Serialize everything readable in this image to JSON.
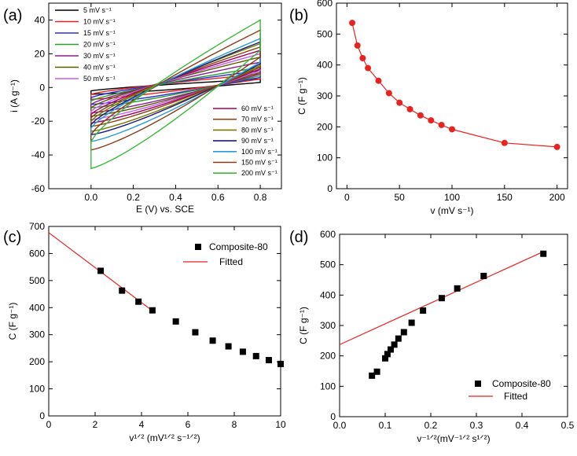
{
  "chart_data": [
    {
      "panel": "(a)",
      "type": "line",
      "xlabel": "E (V) vs. SCE",
      "ylabel": "i (A g⁻¹)",
      "xlim": [
        -0.2,
        0.9
      ],
      "ylim": [
        -60,
        50
      ],
      "xticks": [
        0.0,
        0.2,
        0.4,
        0.6,
        0.8
      ],
      "xtick_labels": [
        "0.0",
        "0.2",
        "0.4",
        "0.6",
        "0.8"
      ],
      "yticks": [
        -60,
        -40,
        -20,
        0,
        20,
        40
      ],
      "ytick_labels": [
        "-60",
        "-40",
        "-20",
        "0",
        "20",
        "40"
      ],
      "legend_placement": "top-left and bottom-right",
      "cv_window": [
        0.0,
        0.8
      ],
      "series": [
        {
          "name": "5 mV s⁻¹",
          "color": "#000000",
          "upper_start": -2,
          "upper_end": 5,
          "lower_start": -4,
          "lower_end": 3
        },
        {
          "name": "10 mV s⁻¹",
          "color": "#e8231f",
          "upper_start": -4,
          "upper_end": 8,
          "lower_start": -7,
          "lower_end": 5
        },
        {
          "name": "15 mV s⁻¹",
          "color": "#2a2ad6",
          "upper_start": -6,
          "upper_end": 10,
          "lower_start": -10,
          "lower_end": 6
        },
        {
          "name": "20 mV s⁻¹",
          "color": "#2e9e2e",
          "upper_start": -8,
          "upper_end": 12,
          "lower_start": -12,
          "lower_end": 7
        },
        {
          "name": "30 mV s⁻¹",
          "color": "#8c1e8c",
          "upper_start": -10,
          "upper_end": 15,
          "lower_start": -15,
          "lower_end": 8
        },
        {
          "name": "40 mV s⁻¹",
          "color": "#5a5a00",
          "upper_start": -12,
          "upper_end": 18,
          "lower_start": -17,
          "lower_end": 9
        },
        {
          "name": "50 mV s⁻¹",
          "color": "#c85ae8",
          "upper_start": -14,
          "upper_end": 20,
          "lower_start": -19,
          "lower_end": 10
        },
        {
          "name": "60 mV s⁻¹",
          "color": "#a0005a",
          "upper_start": -16,
          "upper_end": 22,
          "lower_start": -21,
          "lower_end": 11
        },
        {
          "name": "70 mV s⁻¹",
          "color": "#8b4513",
          "upper_start": -18,
          "upper_end": 24,
          "lower_start": -23,
          "lower_end": 12
        },
        {
          "name": "80 mV s⁻¹",
          "color": "#7a7a00",
          "upper_start": -20,
          "upper_end": 26,
          "lower_start": -26,
          "lower_end": 13
        },
        {
          "name": "90 mV s⁻¹",
          "color": "#1a1a7a",
          "upper_start": -22,
          "upper_end": 27,
          "lower_start": -28,
          "lower_end": 14
        },
        {
          "name": "100 mV s⁻¹",
          "color": "#2a9ad6",
          "upper_start": -24,
          "upper_end": 29,
          "lower_start": -32,
          "lower_end": 15
        },
        {
          "name": "150 mV s⁻¹",
          "color": "#8b3a1a",
          "upper_start": -28,
          "upper_end": 34,
          "lower_start": -37,
          "lower_end": 18
        },
        {
          "name": "200 mV s⁻¹",
          "color": "#3cb83c",
          "upper_start": -32,
          "upper_end": 40,
          "lower_start": -48,
          "lower_end": 22
        }
      ]
    },
    {
      "panel": "(b)",
      "type": "line",
      "xlabel": "v (mV s⁻¹)",
      "ylabel": "C (F g⁻¹)",
      "xlim": [
        -10,
        210
      ],
      "ylim": [
        0,
        600
      ],
      "xticks": [
        0,
        50,
        100,
        150,
        200
      ],
      "xtick_labels": [
        "0",
        "50",
        "100",
        "150",
        "200"
      ],
      "yticks": [
        0,
        100,
        200,
        300,
        400,
        500,
        600
      ],
      "ytick_labels": [
        "0",
        "100",
        "200",
        "300",
        "400",
        "500",
        "600"
      ],
      "color": "#e8231f",
      "x": [
        5,
        10,
        15,
        20,
        30,
        40,
        50,
        60,
        70,
        80,
        90,
        100,
        150,
        200
      ],
      "y": [
        536,
        463,
        422,
        390,
        349,
        309,
        278,
        257,
        237,
        221,
        206,
        192,
        148,
        135
      ]
    },
    {
      "panel": "(c)",
      "type": "scatter",
      "xlabel": "v¹ᐟ² (mV¹ᐟ² s⁻¹ᐟ²)",
      "ylabel": "C (F g⁻¹)",
      "xlim": [
        0,
        10
      ],
      "ylim": [
        0,
        700
      ],
      "xticks": [
        0,
        2,
        4,
        6,
        8,
        10
      ],
      "xtick_labels": [
        "0",
        "2",
        "4",
        "6",
        "8",
        "10"
      ],
      "yticks": [
        0,
        100,
        200,
        300,
        400,
        500,
        600,
        700
      ],
      "ytick_labels": [
        "0",
        "100",
        "200",
        "300",
        "400",
        "500",
        "600",
        "700"
      ],
      "legend_placement": "top-right",
      "legend": [
        "Composite-80",
        "Fitted"
      ],
      "x": [
        2.24,
        3.16,
        3.87,
        4.47,
        5.48,
        6.32,
        7.07,
        7.75,
        8.37,
        8.94,
        9.49,
        10.0
      ],
      "y": [
        536,
        463,
        422,
        390,
        349,
        309,
        278,
        257,
        237,
        221,
        206,
        192
      ],
      "fit": {
        "x": [
          0,
          4.6
        ],
        "y": [
          677,
          380
        ],
        "color": "#e8231f"
      }
    },
    {
      "panel": "(d)",
      "type": "scatter",
      "xlabel": "v⁻¹ᐟ²(mV⁻¹ᐟ² s¹ᐟ²)",
      "ylabel": "C (F g⁻¹)",
      "xlim": [
        0,
        0.5
      ],
      "ylim": [
        0,
        600
      ],
      "xticks": [
        0.0,
        0.1,
        0.2,
        0.3,
        0.4,
        0.5
      ],
      "xtick_labels": [
        "0.0",
        "0.1",
        "0.2",
        "0.3",
        "0.4",
        "0.5"
      ],
      "yticks": [
        0,
        100,
        200,
        300,
        400,
        500,
        600
      ],
      "ytick_labels": [
        "0",
        "100",
        "200",
        "300",
        "400",
        "500",
        "600"
      ],
      "legend_placement": "bottom-right",
      "legend": [
        "Composite-80",
        "Fitted"
      ],
      "x": [
        0.447,
        0.316,
        0.258,
        0.224,
        0.183,
        0.158,
        0.141,
        0.129,
        0.12,
        0.112,
        0.105,
        0.1,
        0.082,
        0.071
      ],
      "y": [
        536,
        463,
        422,
        390,
        349,
        309,
        278,
        257,
        237,
        221,
        206,
        192,
        148,
        135
      ],
      "fit": {
        "x": [
          0,
          0.447
        ],
        "y": [
          237,
          543
        ],
        "color": "#e8231f"
      }
    }
  ]
}
